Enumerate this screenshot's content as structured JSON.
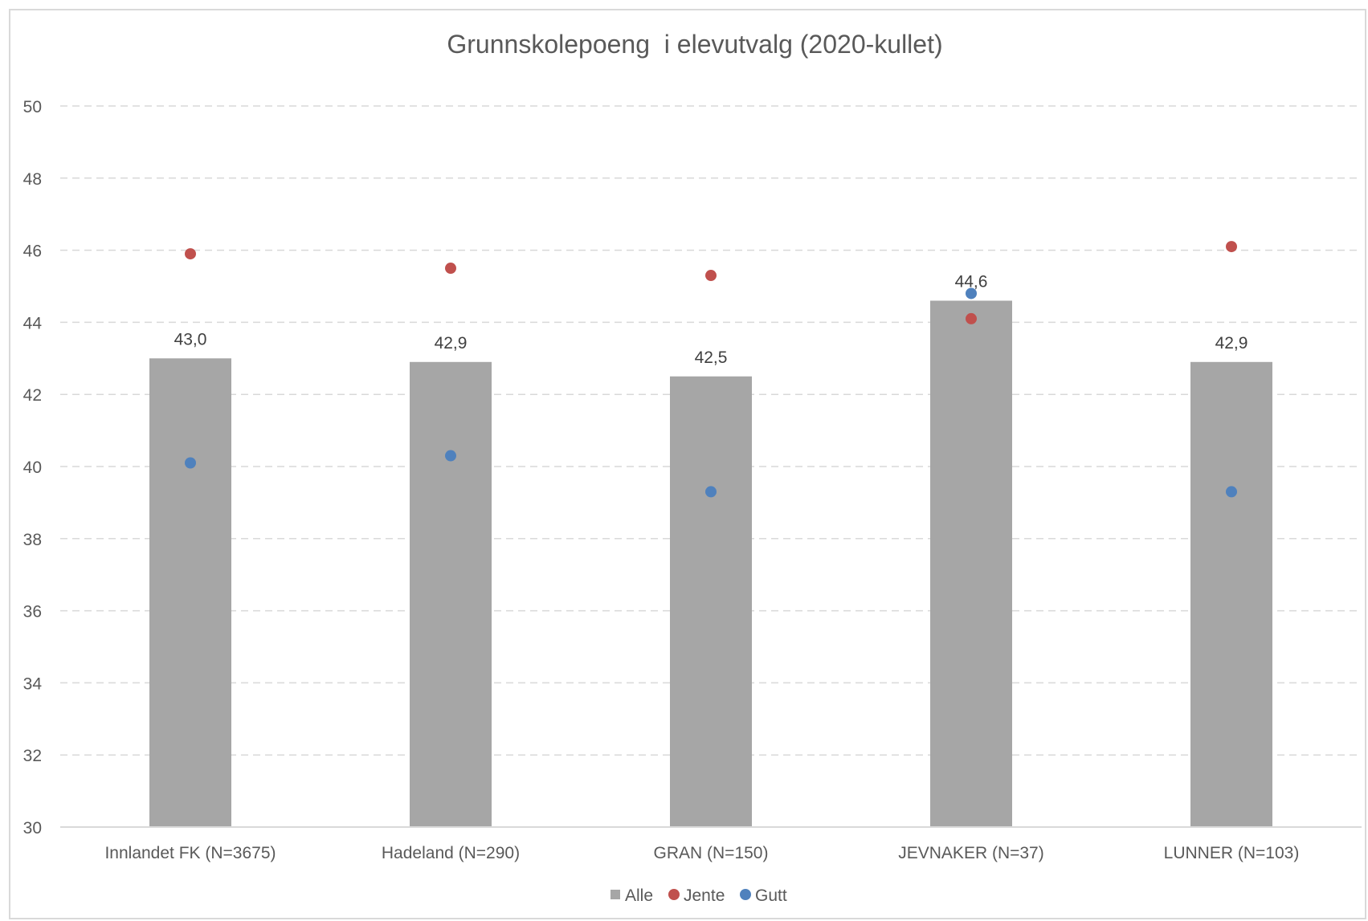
{
  "chart_data": {
    "type": "bar",
    "title": "Grunnskolepoeng  i elevutvalg (2020-kullet)",
    "categories": [
      "Innlandet FK (N=3675)",
      "Hadeland (N=290)",
      "GRAN (N=150)",
      "JEVNAKER (N=37)",
      "LUNNER (N=103)"
    ],
    "series": [
      {
        "name": "Alle",
        "kind": "bar",
        "color": "#a6a6a6",
        "values": [
          43.0,
          42.9,
          42.5,
          44.6,
          42.9
        ],
        "labels": [
          "43,0",
          "42,9",
          "42,5",
          "44,6",
          "42,9"
        ]
      },
      {
        "name": "Jente",
        "kind": "point",
        "color": "#c0504d",
        "values": [
          45.9,
          45.5,
          45.3,
          44.1,
          46.1
        ]
      },
      {
        "name": "Gutt",
        "kind": "point",
        "color": "#4f81bd",
        "values": [
          40.1,
          40.3,
          39.3,
          44.8,
          39.3
        ]
      }
    ],
    "ylim": [
      30,
      50
    ],
    "yticks": [
      "30",
      "32",
      "34",
      "36",
      "38",
      "40",
      "42",
      "44",
      "46",
      "48",
      "50"
    ],
    "grid": true,
    "legend_position": "bottom"
  }
}
